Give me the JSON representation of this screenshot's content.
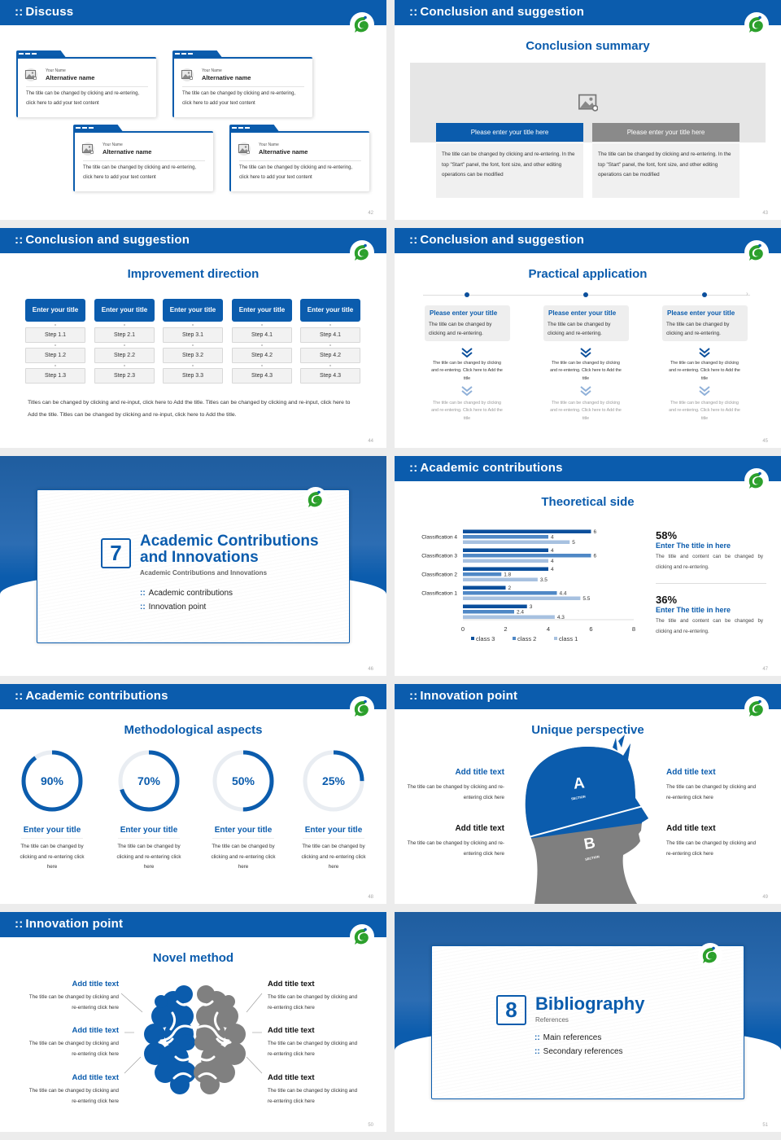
{
  "colors": {
    "primary": "#0b5cad",
    "light": "#a7c1e0",
    "mid": "#4f88c6",
    "gray": "#8a8a8a",
    "logo_green": "#2ca02c"
  },
  "slides": [
    {
      "page": "42",
      "header": "Discuss",
      "icons": [
        "logo-icon",
        "image-placeholder-icon"
      ],
      "cards": [
        {
          "small": "Your Name",
          "name": "Alternative name",
          "text": "The title can be changed by clicking and re-entering, click here to add your text content"
        },
        {
          "small": "Your Name",
          "name": "Alternative name",
          "text": "The title can be changed by clicking and re-entering, click here to add your text content"
        },
        {
          "small": "Your Name",
          "name": "Alternative name",
          "text": "The title can be changed by clicking and re-entering, click here to add your text content"
        },
        {
          "small": "Your Name",
          "name": "Alternative name",
          "text": "The title can be changed by clicking and re-entering, click here to add your text content"
        }
      ]
    },
    {
      "page": "43",
      "header": "Conclusion and suggestion",
      "subtitle": "Conclusion summary",
      "panels": [
        {
          "title": "Please enter your title here",
          "text": "The title can be changed by clicking and re-entering. In the top \"Start\" panel, the font, font size, and other editing operations can be modified"
        },
        {
          "title": "Please enter your title here",
          "text": "The title can be changed by clicking and re-entering. In the top \"Start\" panel, the font, font size, and other editing operations can be modified"
        }
      ]
    },
    {
      "page": "44",
      "header": "Conclusion and suggestion",
      "subtitle": "Improvement direction",
      "columns": [
        {
          "title": "Enter your title",
          "steps": [
            "Step 1.1",
            "Step 1.2",
            "Step 1.3"
          ]
        },
        {
          "title": "Enter your title",
          "steps": [
            "Step 2.1",
            "Step 2.2",
            "Step 2.3"
          ]
        },
        {
          "title": "Enter your title",
          "steps": [
            "Step 3.1",
            "Step 3.2",
            "Step 3.3"
          ]
        },
        {
          "title": "Enter your title",
          "steps": [
            "Step 4.1",
            "Step 4.2",
            "Step 4.3"
          ]
        },
        {
          "title": "Enter your title",
          "steps": [
            "Step 4.1",
            "Step 4.2",
            "Step 4.3"
          ]
        }
      ],
      "note": "Titles can be changed by clicking and re-input, click here to Add the title. Titles can be changed by clicking and re-input, click here to Add the title. Titles can be changed by clicking and re-input, click here to Add the title."
    },
    {
      "page": "45",
      "header": "Conclusion and suggestion",
      "subtitle": "Practical application",
      "items": [
        {
          "title": "Please enter your title",
          "text": "The title can be changed by clicking and re-entering.",
          "sub1": "The title can be changed by clicking and re-entering. Click here to Add the title",
          "sub2": "The title can be changed by clicking and re-entering. Click here to Add the title"
        },
        {
          "title": "Please enter your title",
          "text": "The title can be changed by clicking and re-entering.",
          "sub1": "The title can be changed by clicking and re-entering. Click here to Add the title",
          "sub2": "The title can be changed by clicking and re-entering. Click here to Add the title"
        },
        {
          "title": "Please enter your title",
          "text": "The title can be changed by clicking and re-entering.",
          "sub1": "The title can be changed by clicking and re-entering. Click here to Add the title",
          "sub2": "The title can be changed by clicking and re-entering. Click here to Add the title"
        }
      ]
    },
    {
      "page": "46",
      "number": "7",
      "title_line1": "Academic Contributions",
      "title_line2": "and Innovations",
      "subtitle": "Academic Contributions and Innovations",
      "items": [
        "Academic contributions",
        "Innovation point"
      ]
    },
    {
      "page": "47",
      "header": "Academic contributions",
      "subtitle": "Theoretical side",
      "stats": [
        {
          "value": "58%",
          "title": "Enter The title in here",
          "text": "The title and content can be changed by clicking and re-entering."
        },
        {
          "value": "36%",
          "title": "Enter The title in here",
          "text": "The title and content can be changed by clicking and re-entering."
        }
      ]
    },
    {
      "page": "48",
      "header": "Academic contributions",
      "subtitle": "Methodological aspects",
      "rings": [
        {
          "percent": 90,
          "label": "90%",
          "title": "Enter your title",
          "text": "The title can be changed by clicking and re-entering click here"
        },
        {
          "percent": 70,
          "label": "70%",
          "title": "Enter your title",
          "text": "The title can be changed by clicking and re-entering click here"
        },
        {
          "percent": 50,
          "label": "50%",
          "title": "Enter your title",
          "text": "The title can be changed by clicking and re-entering click here"
        },
        {
          "percent": 25,
          "label": "25%",
          "title": "Enter your title",
          "text": "The title can be changed by clicking and re-entering click here"
        }
      ]
    },
    {
      "page": "49",
      "header": "Innovation point",
      "subtitle": "Unique perspective",
      "head": {
        "a": "A",
        "b": "B",
        "section": "SECTION"
      },
      "left": [
        {
          "title": "Add title text",
          "text": "The title can be changed by clicking and re-entering click here"
        },
        {
          "title": "Add title text",
          "text": "The title can be changed by clicking and re-entering click here"
        }
      ],
      "right": [
        {
          "title": "Add title text",
          "text": "The title can be changed by clicking and re-entering click here"
        },
        {
          "title": "Add title text",
          "text": "The title can be changed by clicking and re-entering click here"
        }
      ]
    },
    {
      "page": "50",
      "header": "Innovation point",
      "subtitle": "Novel method",
      "left": [
        {
          "title": "Add title text",
          "text": "The title can be changed by clicking and re-entering click here"
        },
        {
          "title": "Add title text",
          "text": "The title can be changed by clicking and re-entering click here"
        },
        {
          "title": "Add title text",
          "text": "The title can be changed by clicking and re-entering click here"
        }
      ],
      "right": [
        {
          "title": "Add title text",
          "text": "The title can be changed by clicking and re-entering click here"
        },
        {
          "title": "Add title text",
          "text": "The title can be changed by clicking and re-entering click here"
        },
        {
          "title": "Add title text",
          "text": "The title can be changed by clicking and re-entering click here"
        }
      ]
    },
    {
      "page": "51",
      "number": "8",
      "title_line1": "Bibliography",
      "subtitle": "References",
      "items": [
        "Main references",
        "Secondary references"
      ]
    }
  ],
  "chart_data": {
    "type": "bar",
    "orientation": "horizontal",
    "categories": [
      "Classification 4",
      "Classification 3",
      "Classification 2",
      "Classification 1",
      ""
    ],
    "series": [
      {
        "name": "class 3",
        "color": "#0b4f9c",
        "values": [
          6,
          4,
          4,
          2,
          3
        ]
      },
      {
        "name": "class 2",
        "color": "#4f88c6",
        "values": [
          4,
          6,
          1.8,
          4.4,
          2.4
        ]
      },
      {
        "name": "class 1",
        "color": "#a7c1e0",
        "values": [
          5,
          4,
          3.5,
          5.5,
          4.3
        ]
      }
    ],
    "xlim": [
      0,
      8
    ],
    "xticks": [
      "0",
      "2",
      "4",
      "6",
      "8"
    ],
    "grid": false,
    "legend": "bottom"
  }
}
